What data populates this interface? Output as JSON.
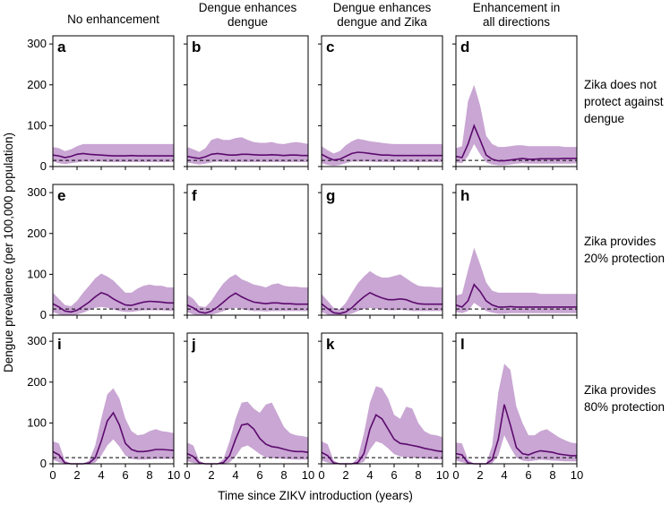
{
  "figure": {
    "ylabel": "Dengue prevalence (per 100,000 population)",
    "xlabel": "Time since ZIKV introduction (years)",
    "column_titles": [
      [
        "No enhancement"
      ],
      [
        "Dengue enhances",
        "dengue"
      ],
      [
        "Dengue enhances",
        "dengue and Zika"
      ],
      [
        "Enhancement in",
        "all directions"
      ]
    ],
    "row_labels": [
      [
        "Zika does not",
        "protect against",
        "dengue"
      ],
      [
        "Zika provides",
        "20% protection"
      ],
      [
        "Zika provides",
        "80% protection"
      ]
    ],
    "colors": {
      "band": "#c9a6d3",
      "line": "#5c0a6e",
      "baseline": "#000000",
      "axis": "#000000"
    }
  },
  "chart_data": {
    "type": "line",
    "xlim": [
      0,
      10
    ],
    "ylim": [
      0,
      320
    ],
    "xticks": [
      0,
      2,
      4,
      6,
      8,
      10
    ],
    "yticks": [
      0,
      100,
      200,
      300
    ],
    "x": [
      0,
      0.5,
      1,
      1.5,
      2,
      2.5,
      3,
      3.5,
      4,
      4.5,
      5,
      5.5,
      6,
      6.5,
      7,
      7.5,
      8,
      8.5,
      9,
      9.5,
      10
    ],
    "baseline_value": 15,
    "series_desc": "Each panel: median dengue prevalence (solid line) with uncertainty band (shaded low-high), dashed line = pre-ZIKV baseline",
    "panels": [
      {
        "label": "a",
        "median": [
          28,
          26,
          22,
          25,
          30,
          32,
          30,
          29,
          28,
          27,
          26,
          26,
          26,
          27,
          26,
          26,
          26,
          26,
          26,
          26,
          26
        ],
        "low": [
          12,
          8,
          6,
          8,
          10,
          12,
          12,
          12,
          12,
          11,
          11,
          11,
          11,
          11,
          11,
          11,
          11,
          11,
          11,
          11,
          11
        ],
        "high": [
          48,
          45,
          38,
          42,
          50,
          55,
          55,
          55,
          55,
          55,
          55,
          55,
          55,
          55,
          55,
          55,
          55,
          55,
          55,
          55,
          55
        ]
      },
      {
        "label": "b",
        "median": [
          25,
          22,
          20,
          24,
          30,
          32,
          30,
          28,
          28,
          30,
          30,
          29,
          28,
          28,
          29,
          28,
          27,
          28,
          28,
          27,
          27
        ],
        "low": [
          10,
          7,
          5,
          7,
          10,
          12,
          11,
          11,
          11,
          11,
          11,
          11,
          11,
          11,
          11,
          11,
          11,
          11,
          11,
          11,
          11
        ],
        "high": [
          48,
          42,
          36,
          45,
          65,
          70,
          65,
          65,
          70,
          72,
          65,
          60,
          58,
          58,
          60,
          56,
          55,
          58,
          60,
          58,
          55
        ]
      },
      {
        "label": "c",
        "median": [
          30,
          22,
          16,
          18,
          25,
          32,
          35,
          34,
          32,
          30,
          28,
          28,
          27,
          27,
          27,
          27,
          27,
          27,
          27,
          27,
          27
        ],
        "low": [
          8,
          4,
          2,
          4,
          8,
          12,
          12,
          12,
          12,
          11,
          11,
          11,
          11,
          11,
          11,
          11,
          11,
          11,
          11,
          11,
          11
        ],
        "high": [
          50,
          40,
          32,
          38,
          52,
          62,
          68,
          65,
          62,
          60,
          58,
          56,
          55,
          55,
          55,
          55,
          55,
          55,
          55,
          55,
          55
        ]
      },
      {
        "label": "d",
        "median": [
          25,
          22,
          55,
          100,
          65,
          28,
          18,
          14,
          14,
          16,
          18,
          20,
          18,
          18,
          19,
          19,
          19,
          19,
          20,
          20,
          20
        ],
        "low": [
          10,
          8,
          25,
          55,
          30,
          10,
          5,
          3,
          3,
          5,
          7,
          8,
          7,
          7,
          7,
          7,
          7,
          7,
          7,
          7,
          8
        ],
        "high": [
          45,
          50,
          160,
          200,
          150,
          75,
          55,
          48,
          48,
          50,
          52,
          52,
          50,
          50,
          50,
          50,
          50,
          50,
          48,
          48,
          48
        ]
      },
      {
        "label": "e",
        "median": [
          28,
          20,
          10,
          8,
          12,
          22,
          32,
          45,
          55,
          50,
          40,
          32,
          25,
          24,
          28,
          32,
          34,
          33,
          32,
          30,
          30
        ],
        "low": [
          8,
          2,
          0,
          0,
          2,
          6,
          12,
          18,
          20,
          18,
          14,
          10,
          8,
          8,
          10,
          12,
          12,
          12,
          12,
          11,
          11
        ],
        "high": [
          55,
          40,
          25,
          22,
          35,
          55,
          72,
          90,
          102,
          95,
          85,
          70,
          55,
          55,
          65,
          72,
          75,
          72,
          72,
          68,
          68
        ]
      },
      {
        "label": "f",
        "median": [
          25,
          18,
          8,
          5,
          10,
          20,
          32,
          45,
          54,
          45,
          38,
          32,
          30,
          28,
          30,
          30,
          28,
          28,
          27,
          27,
          27
        ],
        "low": [
          8,
          2,
          0,
          0,
          1,
          5,
          10,
          15,
          18,
          15,
          12,
          10,
          10,
          9,
          10,
          10,
          10,
          10,
          10,
          10,
          10
        ],
        "high": [
          50,
          40,
          22,
          20,
          35,
          58,
          78,
          92,
          100,
          88,
          82,
          75,
          72,
          68,
          75,
          78,
          72,
          70,
          70,
          68,
          68
        ]
      },
      {
        "label": "g",
        "median": [
          28,
          16,
          6,
          4,
          8,
          18,
          32,
          45,
          55,
          48,
          42,
          38,
          38,
          40,
          38,
          32,
          28,
          27,
          27,
          27,
          27
        ],
        "low": [
          8,
          1,
          0,
          0,
          1,
          4,
          10,
          15,
          18,
          16,
          14,
          12,
          12,
          13,
          12,
          10,
          10,
          10,
          10,
          10,
          10
        ],
        "high": [
          52,
          35,
          18,
          15,
          30,
          55,
          78,
          95,
          108,
          98,
          92,
          92,
          96,
          100,
          90,
          80,
          72,
          70,
          70,
          68,
          68
        ]
      },
      {
        "label": "h",
        "median": [
          25,
          20,
          35,
          75,
          58,
          35,
          25,
          20,
          20,
          21,
          20,
          20,
          20,
          20,
          20,
          20,
          20,
          20,
          20,
          20,
          20
        ],
        "low": [
          8,
          5,
          10,
          30,
          20,
          10,
          6,
          4,
          4,
          5,
          5,
          5,
          5,
          5,
          5,
          5,
          5,
          5,
          5,
          5,
          5
        ],
        "high": [
          48,
          52,
          110,
          165,
          125,
          80,
          60,
          55,
          55,
          55,
          55,
          55,
          55,
          55,
          52,
          52,
          52,
          52,
          52,
          52,
          52
        ]
      },
      {
        "label": "i",
        "median": [
          30,
          22,
          2,
          0,
          0,
          0,
          2,
          15,
          55,
          105,
          125,
          95,
          50,
          35,
          30,
          30,
          32,
          35,
          35,
          34,
          33
        ],
        "low": [
          10,
          4,
          0,
          0,
          0,
          0,
          0,
          3,
          20,
          45,
          60,
          42,
          20,
          12,
          10,
          10,
          11,
          12,
          12,
          12,
          12
        ],
        "high": [
          55,
          50,
          8,
          0,
          0,
          0,
          8,
          45,
          110,
          170,
          185,
          160,
          110,
          80,
          70,
          72,
          80,
          85,
          80,
          78,
          75
        ]
      },
      {
        "label": "j",
        "median": [
          25,
          18,
          2,
          0,
          0,
          0,
          3,
          20,
          60,
          95,
          98,
          85,
          62,
          48,
          42,
          40,
          36,
          32,
          30,
          30,
          28
        ],
        "low": [
          6,
          2,
          0,
          0,
          0,
          0,
          0,
          3,
          18,
          40,
          45,
          35,
          24,
          16,
          14,
          13,
          12,
          11,
          10,
          10,
          10
        ],
        "high": [
          52,
          45,
          8,
          0,
          0,
          0,
          12,
          55,
          110,
          150,
          152,
          135,
          125,
          145,
          150,
          120,
          90,
          75,
          70,
          68,
          65
        ]
      },
      {
        "label": "k",
        "median": [
          28,
          20,
          2,
          0,
          0,
          0,
          3,
          25,
          85,
          120,
          110,
          85,
          60,
          50,
          48,
          45,
          42,
          38,
          35,
          32,
          30
        ],
        "low": [
          8,
          3,
          0,
          0,
          0,
          0,
          0,
          5,
          35,
          55,
          50,
          38,
          24,
          18,
          16,
          15,
          14,
          13,
          12,
          11,
          11
        ],
        "high": [
          55,
          48,
          8,
          0,
          0,
          0,
          15,
          75,
          150,
          190,
          185,
          160,
          120,
          110,
          140,
          135,
          100,
          80,
          72,
          70,
          65
        ]
      },
      {
        "label": "l",
        "median": [
          25,
          22,
          2,
          0,
          0,
          0,
          10,
          60,
          145,
          95,
          40,
          25,
          22,
          28,
          32,
          30,
          28,
          24,
          22,
          20,
          20
        ],
        "low": [
          8,
          4,
          0,
          0,
          0,
          0,
          1,
          20,
          70,
          40,
          15,
          8,
          6,
          8,
          10,
          9,
          8,
          7,
          6,
          6,
          6
        ],
        "high": [
          52,
          50,
          10,
          0,
          0,
          0,
          45,
          175,
          245,
          230,
          140,
          100,
          70,
          70,
          80,
          85,
          75,
          65,
          58,
          52,
          50
        ]
      }
    ]
  }
}
